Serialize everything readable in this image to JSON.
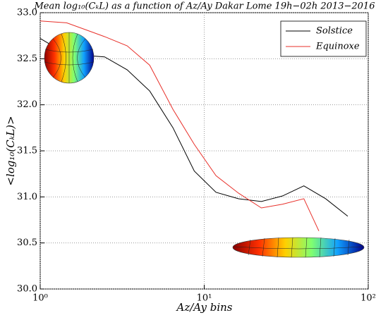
{
  "chart_data": {
    "type": "line",
    "title": "Mean log₁₀(CₖL) as a function of Az/Ay Dakar Lome 19h−02h 2013−2016",
    "x_label": "Az/Ay bins",
    "y_label": "<log₁₀(CₖL)>",
    "xscale": "log",
    "xlim": [
      1,
      100
    ],
    "ylim": [
      30.0,
      33.0
    ],
    "xticks": [
      {
        "value": 1,
        "label": "10⁰"
      },
      {
        "value": 10,
        "label": "10¹"
      },
      {
        "value": 100,
        "label": "10²"
      }
    ],
    "yticks": [
      {
        "value": 30,
        "label": "30.0"
      },
      30.5,
      {
        "value": 31,
        "label": "31.0"
      },
      31.5,
      {
        "value": 32,
        "label": "32.0"
      },
      32.5,
      {
        "value": 33,
        "label": "33.0"
      }
    ],
    "grid": true,
    "legend": "upper right",
    "series": [
      {
        "name": "Solstice",
        "color": "#000000",
        "x": [
          1,
          1.45,
          2.47,
          3.39,
          4.65,
          6.45,
          8.7,
          11.8,
          16.2,
          22.3,
          30,
          40.5,
          55,
          75
        ],
        "values": [
          32.72,
          32.55,
          32.52,
          32.38,
          32.15,
          31.75,
          31.28,
          31.05,
          30.98,
          30.95,
          31.01,
          31.12,
          30.98,
          30.79
        ]
      },
      {
        "name": "Equinoxe",
        "color": "#e8302a",
        "x": [
          1,
          1.45,
          2.47,
          3.39,
          4.65,
          6.45,
          8.7,
          11.8,
          16.2,
          22.3,
          30,
          40.5,
          50
        ],
        "values": [
          32.91,
          32.89,
          32.74,
          32.64,
          32.43,
          31.95,
          31.57,
          31.23,
          31.04,
          30.88,
          30.92,
          30.98,
          30.63
        ]
      }
    ]
  }
}
